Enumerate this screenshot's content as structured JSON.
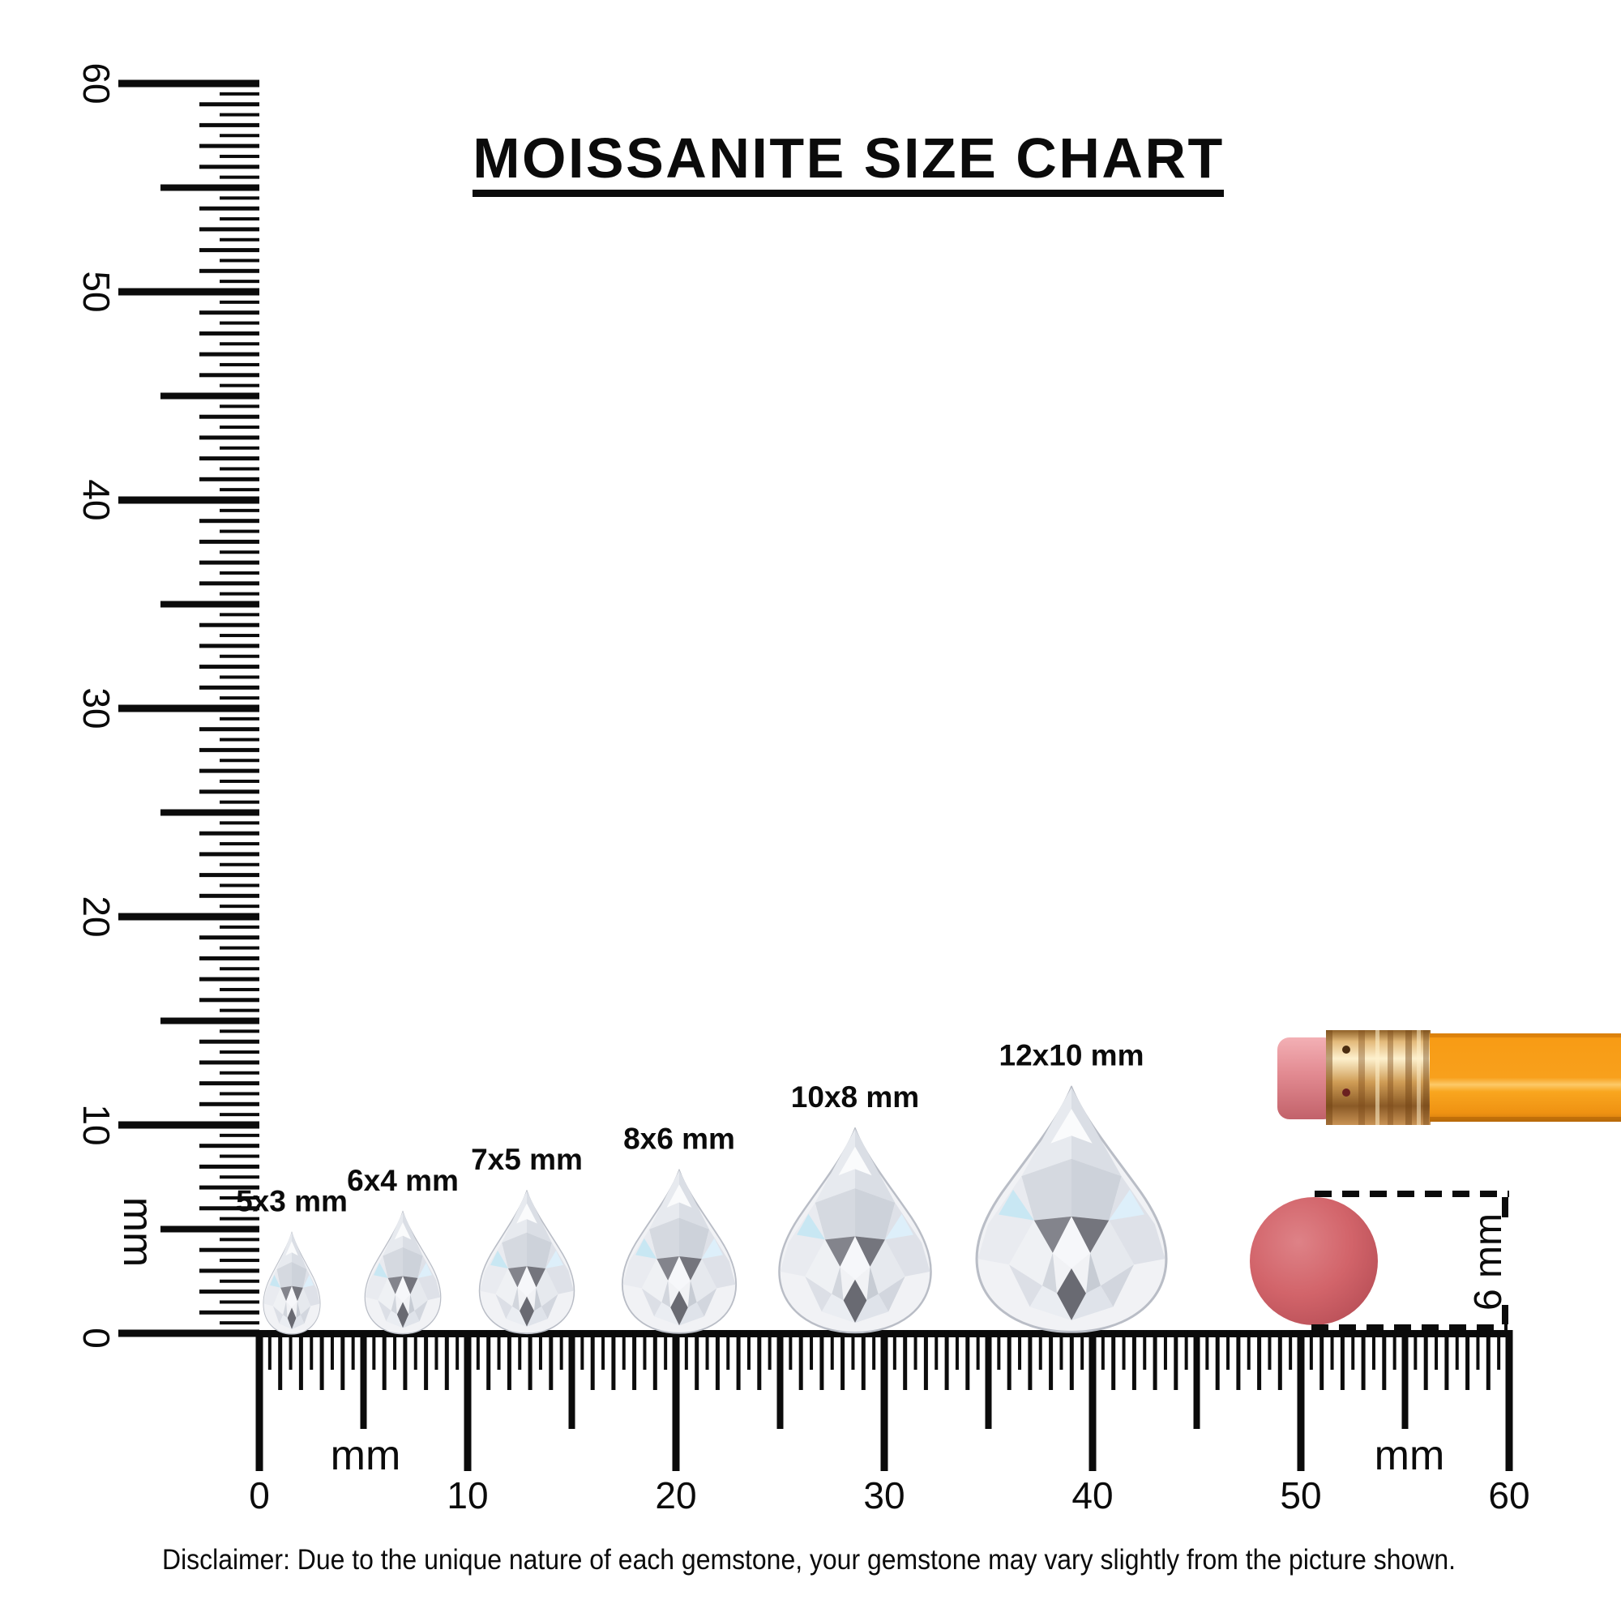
{
  "title": "MOISSANITE SIZE CHART",
  "rulers": {
    "unit_label": "mm",
    "min_mm": 0,
    "max_mm": 60,
    "major_step_mm": 10,
    "numbered_ticks": [
      0,
      10,
      20,
      30,
      40,
      50,
      60
    ],
    "vertical_unit_label": "mm",
    "horizontal_unit_labels": [
      "mm",
      "mm"
    ]
  },
  "gems": [
    {
      "label": "5x3 mm",
      "length_mm": 5,
      "width_mm": 3
    },
    {
      "label": "6x4 mm",
      "length_mm": 6,
      "width_mm": 4
    },
    {
      "label": "7x5 mm",
      "length_mm": 7,
      "width_mm": 5
    },
    {
      "label": "8x6 mm",
      "length_mm": 8,
      "width_mm": 6
    },
    {
      "label": "10x8 mm",
      "length_mm": 10,
      "width_mm": 8
    },
    {
      "label": "12x10 mm",
      "length_mm": 12,
      "width_mm": 10
    }
  ],
  "reference_objects": {
    "pencil": "pencil with eraser",
    "eraser_disc_diameter_label": "6 mm",
    "eraser_disc_diameter_mm": 6
  },
  "disclaimer": "Disclaimer: Due to the unique nature of each gemstone, your gemstone may vary slightly from the picture shown.",
  "colors": {
    "ink": "#0b0b0b",
    "pencil_body": "#f89c15",
    "ferrule_gold": "#d3a05a",
    "eraser_pink": "#e28a91",
    "disc_red": "#d2646a"
  }
}
